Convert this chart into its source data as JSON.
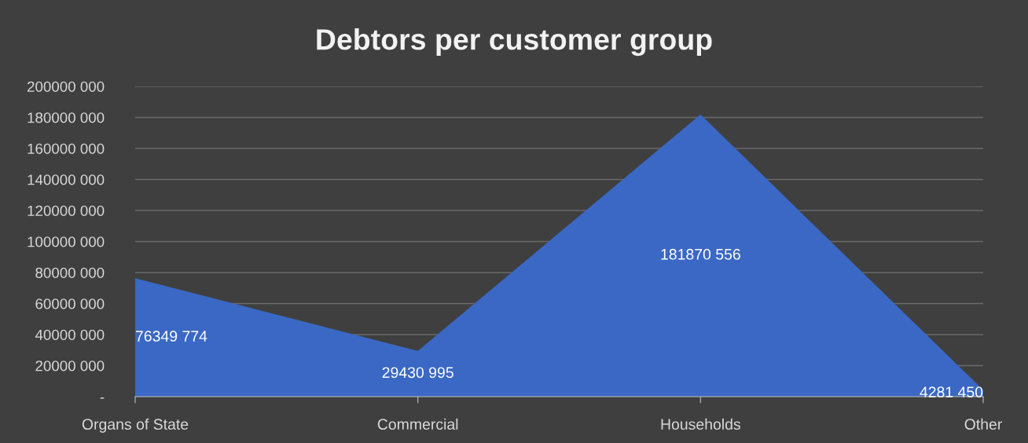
{
  "chart_data": {
    "type": "area",
    "title": "Debtors per customer group",
    "categories": [
      "Organs of State",
      "Commercial",
      "Households",
      "Other"
    ],
    "series": [
      {
        "color": "#3a68c4",
        "values": [
          76349774,
          29430995,
          181870556,
          4281450
        ]
      }
    ],
    "value_labels": [
      "76349 774",
      "29430 995",
      "181870 556",
      "4281 450"
    ],
    "ylim": [
      0,
      200000000
    ],
    "yticks": [
      {
        "value": 0,
        "label": "-"
      },
      {
        "value": 20000000,
        "label": "20000 000"
      },
      {
        "value": 40000000,
        "label": "40000 000"
      },
      {
        "value": 60000000,
        "label": "60000 000"
      },
      {
        "value": 80000000,
        "label": "80000 000"
      },
      {
        "value": 100000000,
        "label": "100000 000"
      },
      {
        "value": 120000000,
        "label": "120000 000"
      },
      {
        "value": 140000000,
        "label": "140000 000"
      },
      {
        "value": 160000000,
        "label": "160000 000"
      },
      {
        "value": 180000000,
        "label": "180000 000"
      },
      {
        "value": 200000000,
        "label": "200000 000"
      }
    ],
    "grid": "y",
    "legend": false
  }
}
